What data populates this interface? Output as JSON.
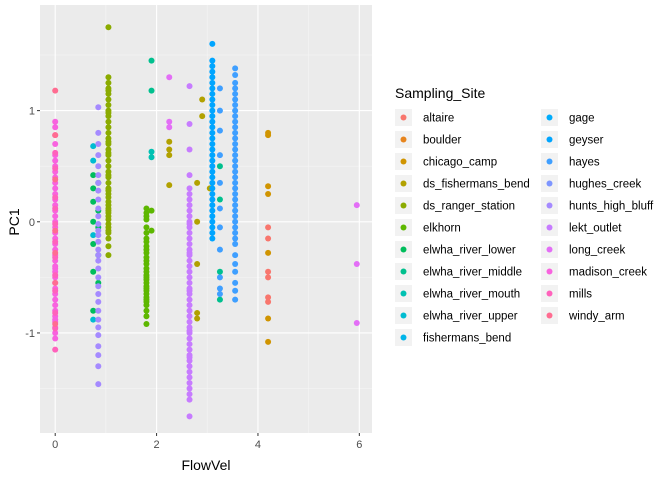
{
  "chart_data": {
    "type": "scatter",
    "xlabel": "FlowVel",
    "ylabel": "PC1",
    "xlim": [
      -0.3,
      6.25
    ],
    "ylim": [
      -1.9,
      1.95
    ],
    "x_ticks": [
      0,
      2,
      4,
      6
    ],
    "x_tick_labels": [
      "0",
      "2",
      "4",
      "6"
    ],
    "y_ticks": [
      -1,
      0,
      1
    ],
    "y_tick_labels": [
      "-1",
      "0",
      "1"
    ],
    "grid": true,
    "legend_title": "Sampling_Site",
    "legend_position": "right",
    "series": [
      {
        "name": "altaire",
        "color": "#F8766D",
        "x": [
          4.2,
          4.2,
          4.2,
          4.2,
          4.2,
          4.2
        ],
        "y": [
          -0.05,
          -0.15,
          -0.5,
          -0.68,
          -0.72,
          -0.45
        ]
      },
      {
        "name": "boulder",
        "color": "#E7851E",
        "x": [],
        "y": []
      },
      {
        "name": "chicago_camp",
        "color": "#D09400",
        "x": [
          4.2,
          4.2,
          4.2,
          4.2,
          4.2,
          4.2,
          4.2
        ],
        "y": [
          0.8,
          0.78,
          0.32,
          0.25,
          -0.28,
          -0.87,
          -1.08
        ]
      },
      {
        "name": "ds_fishermans_bend",
        "color": "#B2A100",
        "x": [
          2.25,
          2.25,
          2.25,
          2.25,
          2.8,
          2.8,
          2.8,
          2.8,
          2.8,
          2.9,
          2.9,
          3.05
        ],
        "y": [
          0.72,
          0.65,
          0.6,
          0.33,
          0.35,
          0.0,
          -0.38,
          -0.82,
          -0.87,
          1.1,
          0.95,
          0.3
        ]
      },
      {
        "name": "ds_ranger_station",
        "color": "#8BAB00",
        "x": [
          1.05,
          1.05,
          1.05,
          1.05,
          1.05,
          1.05,
          1.05,
          1.05,
          1.05,
          1.05,
          1.05,
          1.05,
          1.05,
          1.05,
          1.05,
          1.05,
          1.05,
          1.05,
          1.05,
          1.05,
          1.05,
          1.05,
          1.05,
          1.05,
          1.05,
          1.05,
          1.05,
          1.05,
          1.05,
          1.05,
          1.05,
          1.05,
          1.05,
          1.05,
          1.05,
          1.05,
          1.05,
          1.05,
          1.05,
          1.05,
          1.05,
          1.05,
          1.05,
          1.05
        ],
        "y": [
          1.75,
          1.3,
          1.25,
          1.2,
          1.15,
          1.1,
          1.05,
          1.0,
          0.95,
          0.9,
          0.85,
          0.8,
          0.75,
          0.7,
          0.65,
          0.6,
          0.55,
          0.5,
          0.45,
          0.4,
          0.35,
          0.3,
          0.28,
          0.22,
          0.18,
          0.15,
          0.12,
          0.08,
          0.05,
          0.02,
          -0.02,
          -0.05,
          -0.1,
          -0.15,
          -0.22,
          -0.3,
          1.18,
          0.98,
          0.72,
          0.62,
          0.42,
          0.25,
          0.1,
          -0.08
        ]
      },
      {
        "name": "elkhorn",
        "color": "#5DB700",
        "x": [
          1.8,
          1.8,
          1.8,
          1.8,
          1.8,
          1.8,
          1.8,
          1.8,
          1.8,
          1.8,
          1.8,
          1.8,
          1.8,
          1.8,
          1.8,
          1.8,
          1.8,
          1.8,
          1.8,
          1.8,
          1.8,
          1.8,
          1.8,
          1.8,
          1.8,
          1.8,
          1.8,
          1.8,
          1.8,
          1.8,
          1.8,
          1.9,
          1.9
        ],
        "y": [
          0.12,
          0.08,
          0.05,
          0.02,
          -0.05,
          -0.1,
          -0.15,
          -0.18,
          -0.22,
          -0.25,
          -0.28,
          -0.32,
          -0.35,
          -0.38,
          -0.42,
          -0.45,
          -0.48,
          -0.5,
          -0.52,
          -0.55,
          -0.58,
          -0.6,
          -0.62,
          -0.65,
          -0.68,
          -0.7,
          -0.72,
          -0.75,
          -0.8,
          -0.85,
          -0.92,
          0.1,
          -0.08
        ]
      },
      {
        "name": "elwha_river_lower",
        "color": "#00BD5C",
        "x": [
          0.75,
          0.75,
          0.75,
          0.75,
          0.75,
          0.75,
          0.75,
          0.85,
          0.85,
          0.85,
          0.85,
          0.85
        ],
        "y": [
          0.42,
          0.3,
          0.18,
          0.0,
          -0.2,
          -0.45,
          -0.8,
          0.35,
          0.1,
          -0.05,
          -0.3,
          -0.55
        ]
      },
      {
        "name": "elwha_river_middle",
        "color": "#00C08E",
        "x": [
          1.9,
          1.9,
          3.25,
          3.25,
          3.25,
          3.25
        ],
        "y": [
          1.45,
          1.18,
          0.5,
          0.2,
          -0.45,
          -0.7
        ]
      },
      {
        "name": "elwha_river_mouth",
        "color": "#00C1B2",
        "x": [
          1.9,
          1.9
        ],
        "y": [
          0.63,
          0.58
        ]
      },
      {
        "name": "elwha_river_upper",
        "color": "#00BCD1",
        "x": [
          0.75,
          0.75,
          0.75,
          0.75
        ],
        "y": [
          0.68,
          0.55,
          -0.12,
          -0.88
        ]
      },
      {
        "name": "fishermans_bend",
        "color": "#00B4E9",
        "x": [],
        "y": []
      },
      {
        "name": "gage",
        "color": "#00ACFC",
        "x": [],
        "y": []
      },
      {
        "name": "geyser",
        "color": "#00A5FF",
        "x": [
          3.1,
          3.1,
          3.1,
          3.1,
          3.1,
          3.1,
          3.1,
          3.1,
          3.1,
          3.1,
          3.1,
          3.1,
          3.1,
          3.1,
          3.1,
          3.1,
          3.1,
          3.1,
          3.1,
          3.1,
          3.1,
          3.1,
          3.1,
          3.1,
          3.1,
          3.1,
          3.1,
          3.1,
          3.1,
          3.1,
          3.1,
          3.1,
          3.1,
          3.1
        ],
        "y": [
          1.6,
          1.45,
          1.4,
          1.35,
          1.3,
          1.25,
          1.2,
          1.15,
          1.1,
          1.05,
          1.0,
          0.95,
          0.9,
          0.85,
          0.8,
          0.75,
          0.7,
          0.65,
          0.6,
          0.55,
          0.5,
          0.45,
          0.4,
          0.35,
          0.3,
          0.25,
          0.2,
          0.15,
          0.1,
          0.05,
          0.0,
          -0.05,
          -0.1,
          -0.15
        ]
      },
      {
        "name": "hayes",
        "color": "#3F9FFF",
        "x": [
          3.55,
          3.55,
          3.55,
          3.55,
          3.55,
          3.55,
          3.55,
          3.55,
          3.55,
          3.55,
          3.55,
          3.55,
          3.55,
          3.55,
          3.55,
          3.55,
          3.55,
          3.55,
          3.55,
          3.55,
          3.55,
          3.55,
          3.55,
          3.55,
          3.55,
          3.55,
          3.55,
          3.55,
          3.55,
          3.55,
          3.55,
          3.55,
          3.55,
          3.55,
          3.55,
          3.55,
          3.55,
          3.55,
          3.25,
          3.25,
          3.25,
          3.25,
          3.25,
          3.25,
          3.25,
          3.25,
          3.25,
          3.25,
          3.25
        ],
        "y": [
          1.38,
          1.32,
          1.25,
          1.2,
          1.15,
          1.1,
          1.05,
          1.0,
          0.95,
          0.9,
          0.85,
          0.8,
          0.75,
          0.7,
          0.65,
          0.6,
          0.55,
          0.5,
          0.45,
          0.4,
          0.35,
          0.3,
          0.25,
          0.2,
          0.15,
          0.1,
          0.05,
          0.0,
          -0.05,
          -0.1,
          -0.15,
          -0.2,
          -0.3,
          -0.38,
          -0.45,
          -0.55,
          -0.62,
          -0.7,
          1.2,
          1.0,
          0.82,
          0.6,
          0.35,
          0.12,
          -0.05,
          -0.25,
          -0.5,
          -0.6,
          -0.65
        ]
      },
      {
        "name": "hughes_creek",
        "color": "#7E96FF",
        "x": [],
        "y": []
      },
      {
        "name": "hunts_high_bluff",
        "color": "#A58AFF",
        "x": [
          0.85,
          0.85,
          0.85,
          0.85,
          0.85,
          0.85,
          0.85,
          0.85,
          0.85,
          0.85,
          0.85,
          0.85,
          0.85,
          0.85,
          0.85,
          0.85,
          0.85,
          0.85,
          0.85,
          0.85,
          0.85,
          0.85,
          0.85,
          0.85,
          0.85,
          0.85,
          0.85,
          0.85,
          0.85,
          0.85,
          0.85
        ],
        "y": [
          1.03,
          0.8,
          0.7,
          0.6,
          0.5,
          0.42,
          0.35,
          0.28,
          0.2,
          0.12,
          0.05,
          -0.02,
          -0.08,
          -0.12,
          -0.18,
          -0.25,
          -0.3,
          -0.35,
          -0.42,
          -0.5,
          -0.58,
          -0.65,
          -0.72,
          -0.8,
          -0.88,
          -0.95,
          -1.02,
          -1.12,
          -1.2,
          -1.3,
          -1.46
        ]
      },
      {
        "name": "lekt_outlet",
        "color": "#C77CFF",
        "x": [
          2.65,
          2.65,
          2.65,
          2.65,
          2.65,
          2.65,
          2.65,
          2.65,
          2.65,
          2.65,
          2.65,
          2.65,
          2.65,
          2.65,
          2.65,
          2.65,
          2.65,
          2.65,
          2.65,
          2.65,
          2.65,
          2.65,
          2.65,
          2.65,
          2.65,
          2.65,
          2.65,
          2.65,
          2.65,
          2.65,
          2.65,
          2.65,
          2.65,
          2.65,
          2.65,
          2.65,
          2.65,
          2.65,
          2.65,
          2.65,
          2.65,
          2.65,
          2.65,
          2.65,
          2.65,
          2.65,
          2.65,
          2.65,
          2.65
        ],
        "y": [
          0.2,
          0.15,
          0.1,
          0.05,
          0.0,
          -0.05,
          -0.1,
          -0.15,
          -0.2,
          -0.25,
          -0.3,
          -0.35,
          -0.4,
          -0.45,
          -0.5,
          -0.55,
          -0.6,
          -0.65,
          -0.7,
          -0.75,
          -0.8,
          -0.85,
          -0.9,
          -0.95,
          -1.0,
          -1.05,
          -1.1,
          -1.15,
          -1.2,
          -1.25,
          -1.3,
          -1.35,
          -1.4,
          -1.45,
          -1.5,
          -1.55,
          -1.6,
          -1.75,
          1.22,
          0.88,
          0.65,
          0.42,
          0.3,
          0.25,
          -0.02,
          -0.28,
          -0.62,
          -0.98,
          -1.22
        ]
      },
      {
        "name": "long_creek",
        "color": "#E36EF6",
        "x": [
          2.25,
          2.25,
          2.25,
          5.95,
          5.95,
          5.95
        ],
        "y": [
          1.3,
          0.9,
          0.85,
          0.15,
          -0.38,
          -0.91
        ]
      },
      {
        "name": "madison_creek",
        "color": "#F863DF",
        "x": [
          0.0,
          0.0,
          0.0,
          0.0,
          0.0,
          0.0,
          0.0,
          0.0,
          0.0,
          0.0,
          0.0,
          0.0,
          0.0,
          0.0,
          0.0,
          0.0,
          0.0,
          0.0,
          0.0,
          0.0,
          0.0,
          0.0,
          0.0,
          0.0,
          0.0,
          0.0,
          0.0,
          0.0,
          0.0,
          0.0,
          0.0,
          0.0,
          0.0,
          0.0,
          0.0,
          0.0,
          0.0,
          0.0,
          0.0,
          0.0
        ],
        "y": [
          0.9,
          0.85,
          0.7,
          0.6,
          0.5,
          0.45,
          0.4,
          0.35,
          0.3,
          0.25,
          0.2,
          0.15,
          0.1,
          0.05,
          0.0,
          -0.05,
          -0.1,
          -0.15,
          -0.2,
          -0.25,
          -0.3,
          -0.35,
          -0.4,
          -0.45,
          -0.5,
          -0.55,
          -0.6,
          -0.65,
          -0.7,
          -0.75,
          -0.8,
          -0.85,
          -0.9,
          -0.95,
          -1.0,
          -1.05,
          0.78,
          0.55,
          -0.42,
          -0.88
        ]
      },
      {
        "name": "mills",
        "color": "#FF62BC",
        "x": [
          0.0,
          0.0,
          0.0,
          0.0,
          0.0,
          0.0,
          0.0,
          0.0,
          0.0,
          0.0,
          0.0,
          0.0
        ],
        "y": [
          0.62,
          0.48,
          0.22,
          0.12,
          -0.02,
          -0.18,
          -0.32,
          -0.48,
          -0.62,
          -0.82,
          -0.96,
          -1.15
        ]
      },
      {
        "name": "windy_arm",
        "color": "#FF6C91",
        "x": [
          0.0,
          0.0,
          0.0,
          0.0,
          0.0,
          0.0,
          0.0
        ],
        "y": [
          1.18,
          0.78,
          0.38,
          -0.08,
          -0.28,
          -0.55,
          -0.92
        ]
      }
    ]
  }
}
